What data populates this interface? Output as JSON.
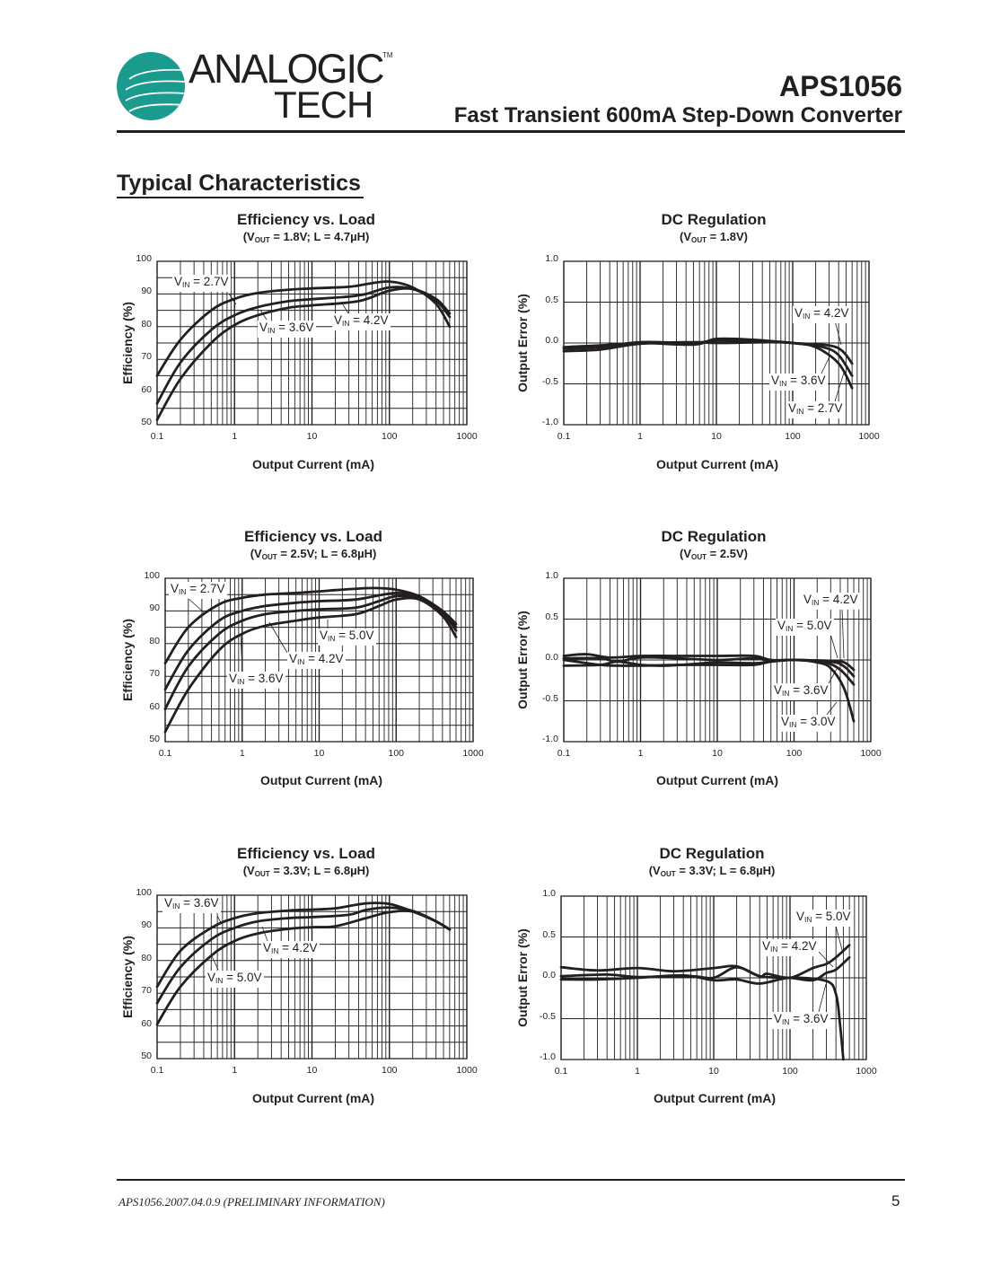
{
  "header": {
    "logo_text_line1": "ANALOGIC",
    "logo_text_line2": "TECH",
    "logo_trademark": "TM",
    "logo_color": "#1b9a8e",
    "part_number": "APS1056",
    "doc_title": "Fast Transient 600mA Step-Down Converter"
  },
  "section_title": "Typical Characteristics",
  "footer": {
    "doc_id": "APS1056.2007.04.0.9 (PRELIMINARY INFORMATION)",
    "page_number": "5"
  },
  "chart_data": [
    {
      "type": "line",
      "title": "Efficiency vs. Load",
      "subtitle": {
        "pre": "(V",
        "sub": "OUT",
        "post": " = 1.8V; L = 4.7µH)"
      },
      "xlabel": "Output Current (mA)",
      "ylabel": "Efficiency (%)",
      "xscale": "log",
      "xlim": [
        0.1,
        1000
      ],
      "ylim": [
        50,
        100
      ],
      "xticks": [
        "0.1",
        "1",
        "10",
        "100",
        "1000"
      ],
      "yticks": [
        "100",
        "90",
        "80",
        "70",
        "60",
        "50"
      ],
      "grid": true,
      "series": [
        {
          "name": "VIN = 2.7V",
          "x": [
            0.1,
            0.2,
            0.5,
            1,
            2,
            5,
            10,
            30,
            50,
            100,
            200,
            400,
            600
          ],
          "y": [
            65,
            76,
            85,
            88.5,
            90.3,
            91.3,
            91.7,
            92.2,
            93,
            93.8,
            92,
            87,
            80
          ]
        },
        {
          "name": "VIN = 3.6V",
          "x": [
            0.1,
            0.2,
            0.5,
            1,
            2,
            5,
            10,
            30,
            50,
            100,
            200,
            400,
            600
          ],
          "y": [
            56.5,
            69,
            79,
            83.5,
            86,
            87.8,
            88.4,
            89.2,
            90,
            92,
            91.5,
            88,
            83
          ]
        },
        {
          "name": "VIN = 4.2V",
          "x": [
            0.1,
            0.2,
            0.5,
            1,
            2,
            5,
            10,
            40,
            100,
            200,
            400,
            600
          ],
          "y": [
            51.5,
            64,
            75,
            80.5,
            83.5,
            85.8,
            86.5,
            87.8,
            91,
            91.5,
            88.5,
            84
          ]
        }
      ]
    },
    {
      "type": "line",
      "title": "DC Regulation",
      "subtitle": {
        "pre": "(V",
        "sub": "OUT",
        "post": " = 1.8V)"
      },
      "xlabel": "Output Current (mA)",
      "ylabel": "Output Error (%)",
      "xscale": "log",
      "xlim": [
        0.1,
        1000
      ],
      "ylim": [
        -1.0,
        1.0
      ],
      "xticks": [
        "0.1",
        "1",
        "10",
        "100",
        "1000"
      ],
      "yticks": [
        "1.0",
        "0.5",
        "0.0",
        "-0.5",
        "-1.0"
      ],
      "grid": true,
      "series": [
        {
          "name": "VIN = 4.2V",
          "x": [
            0.1,
            0.3,
            1,
            5,
            10,
            30,
            100,
            300,
            450,
            600
          ],
          "y": [
            -0.05,
            -0.03,
            0.0,
            -0.02,
            0.05,
            0.04,
            0,
            -0.03,
            -0.1,
            -0.25
          ]
        },
        {
          "name": "VIN = 3.6V",
          "x": [
            0.1,
            0.3,
            1,
            5,
            10,
            50,
            100,
            250,
            400,
            600
          ],
          "y": [
            -0.07,
            -0.05,
            0.01,
            0,
            0.03,
            0.02,
            0,
            -0.05,
            -0.15,
            -0.4
          ]
        },
        {
          "name": "VIN = 2.7V",
          "x": [
            0.1,
            0.3,
            1,
            5,
            10,
            50,
            100,
            200,
            400,
            600
          ],
          "y": [
            -0.1,
            -0.08,
            -0.01,
            0.01,
            0.0,
            0.01,
            0,
            -0.05,
            -0.25,
            -0.55
          ]
        }
      ]
    },
    {
      "type": "line",
      "title": "Efficiency vs. Load",
      "subtitle": {
        "pre": "(V",
        "sub": "OUT",
        "post": " = 2.5V; L = 6.8µH)"
      },
      "xlabel": "Output Current (mA)",
      "ylabel": "Efficiency (%)",
      "xscale": "log",
      "xlim": [
        0.1,
        1000
      ],
      "ylim": [
        50,
        100
      ],
      "xticks": [
        "0.1",
        "1",
        "10",
        "100",
        "1000"
      ],
      "yticks": [
        "100",
        "90",
        "80",
        "70",
        "60",
        "50"
      ],
      "grid": true,
      "series": [
        {
          "name": "VIN = 2.7V",
          "x": [
            0.1,
            0.2,
            0.5,
            1,
            2,
            5,
            10,
            20,
            50,
            100,
            200,
            400,
            600
          ],
          "y": [
            74,
            85,
            92,
            94,
            95,
            95.5,
            96,
            96.5,
            97,
            96.5,
            94.5,
            90,
            86
          ]
        },
        {
          "name": "VIN = 5.0V",
          "x": [
            0.1,
            0.2,
            0.5,
            1,
            2,
            5,
            10,
            30,
            60,
            100,
            200,
            400,
            600
          ],
          "y": [
            53,
            66,
            78,
            83,
            85.5,
            87,
            88,
            89,
            91.5,
            93.5,
            93.5,
            88.5,
            82
          ]
        },
        {
          "name": "VIN = 4.2V",
          "x": [
            0.1,
            0.2,
            0.5,
            1,
            2,
            5,
            10,
            30,
            60,
            100,
            200,
            400,
            600
          ],
          "y": [
            60,
            73,
            83,
            87,
            89,
            90,
            90.5,
            91,
            93,
            94.5,
            94,
            89.5,
            84
          ]
        },
        {
          "name": "VIN = 3.6V",
          "x": [
            0.1,
            0.2,
            0.5,
            1,
            2,
            5,
            10,
            30,
            100,
            200,
            400,
            600
          ],
          "y": [
            66,
            78,
            87,
            90,
            91.5,
            92.5,
            93,
            93.5,
            95.5,
            94,
            90,
            85
          ]
        }
      ]
    },
    {
      "type": "line",
      "title": "DC Regulation",
      "subtitle": {
        "pre": "(V",
        "sub": "OUT",
        "post": " = 2.5V)"
      },
      "xlabel": "Output Current (mA)",
      "ylabel": "Output Error (%)",
      "xscale": "log",
      "xlim": [
        0.1,
        1000
      ],
      "ylim": [
        -1.0,
        1.0
      ],
      "xticks": [
        "0.1",
        "1",
        "10",
        "100",
        "1000"
      ],
      "yticks": [
        "1.0",
        "0.5",
        "0.0",
        "-0.5",
        "-1.0"
      ],
      "grid": true,
      "series": [
        {
          "name": "VIN = 4.2V",
          "x": [
            0.1,
            0.2,
            0.4,
            1,
            3,
            10,
            30,
            50,
            100,
            300,
            450,
            600
          ],
          "y": [
            0.05,
            0.07,
            0.03,
            0.05,
            0.05,
            0.05,
            0.05,
            0.0,
            0,
            -0.01,
            -0.03,
            -0.12
          ]
        },
        {
          "name": "VIN = 5.0V",
          "x": [
            0.1,
            0.3,
            0.5,
            1,
            3,
            10,
            30,
            50,
            100,
            300,
            450,
            600
          ],
          "y": [
            0.02,
            0.02,
            -0.02,
            0.03,
            0.02,
            0.0,
            0.02,
            -0.01,
            0,
            -0.02,
            -0.08,
            -0.2
          ]
        },
        {
          "name": "VIN = 3.6V",
          "x": [
            0.1,
            0.3,
            0.5,
            1,
            2,
            5,
            10,
            30,
            50,
            100,
            250,
            400,
            600
          ],
          "y": [
            -0.07,
            -0.06,
            -0.02,
            -0.06,
            -0.07,
            -0.05,
            -0.03,
            -0.04,
            -0.02,
            0,
            -0.03,
            -0.12,
            -0.3
          ]
        },
        {
          "name": "VIN = 3.0V",
          "x": [
            0.1,
            0.3,
            0.5,
            1,
            3,
            10,
            30,
            50,
            100,
            200,
            300,
            450,
            600
          ],
          "y": [
            0.0,
            -0.06,
            -0.07,
            -0.07,
            -0.06,
            -0.06,
            -0.06,
            -0.02,
            0,
            -0.03,
            -0.1,
            -0.35,
            -0.75
          ]
        }
      ]
    },
    {
      "type": "line",
      "title": "Efficiency vs. Load",
      "subtitle": {
        "pre": "(V",
        "sub": "OUT",
        "post": " = 3.3V; L = 6.8µH)"
      },
      "xlabel": "Output Current (mA)",
      "ylabel": "Efficiency (%)",
      "xscale": "log",
      "xlim": [
        0.1,
        1000
      ],
      "ylim": [
        50,
        100
      ],
      "xticks": [
        "0.1",
        "1",
        "10",
        "100",
        "1000"
      ],
      "yticks": [
        "100",
        "90",
        "80",
        "70",
        "60",
        "50"
      ],
      "grid": true,
      "series": [
        {
          "name": "VIN = 3.6V",
          "x": [
            0.1,
            0.2,
            0.5,
            1,
            2,
            5,
            10,
            20,
            50,
            100,
            200,
            400,
            600
          ],
          "y": [
            72,
            83,
            90,
            93,
            94.5,
            95.3,
            95.6,
            96,
            97.5,
            97.3,
            95,
            92,
            89.5
          ]
        },
        {
          "name": "VIN = 4.2V",
          "x": [
            0.1,
            0.2,
            0.5,
            1,
            2,
            5,
            10,
            30,
            50,
            100,
            200,
            400,
            600
          ],
          "y": [
            67,
            78,
            86.5,
            90,
            92,
            93,
            93.3,
            94,
            95.5,
            96.2,
            95.2,
            92,
            89.5
          ]
        },
        {
          "name": "VIN = 5.0V",
          "x": [
            0.1,
            0.2,
            0.5,
            1,
            2,
            5,
            10,
            20,
            50,
            100,
            200,
            400,
            600
          ],
          "y": [
            60.5,
            72,
            81.5,
            86,
            88.3,
            89.7,
            90.2,
            90.5,
            93,
            94.8,
            95,
            92,
            89.5
          ]
        }
      ]
    },
    {
      "type": "line",
      "title": "DC Regulation",
      "subtitle": {
        "pre": "(V",
        "sub": "OUT",
        "post": " = 3.3V; L = 6.8µH)"
      },
      "xlabel": "Output Current (mA)",
      "ylabel": "Output Error (%)",
      "xscale": "log",
      "xlim": [
        0.1,
        1000
      ],
      "ylim": [
        -1.0,
        1.0
      ],
      "xticks": [
        "0.1",
        "1",
        "10",
        "100",
        "1000"
      ],
      "yticks": [
        "1.0",
        "0.5",
        "0.0",
        "-0.5",
        "-1.0"
      ],
      "grid": true,
      "series": [
        {
          "name": "VIN = 5.0V",
          "x": [
            0.1,
            0.3,
            1,
            3,
            10,
            20,
            40,
            50,
            100,
            200,
            300,
            400,
            600
          ],
          "y": [
            0.13,
            0.09,
            0.12,
            0.08,
            0.12,
            0.14,
            0.02,
            0.05,
            0,
            0.12,
            0.17,
            0.25,
            0.4
          ]
        },
        {
          "name": "VIN = 4.2V",
          "x": [
            0.1,
            0.4,
            1,
            5,
            10,
            20,
            40,
            100,
            200,
            300,
            400,
            600
          ],
          "y": [
            0.02,
            0.04,
            0.01,
            0.02,
            0.0,
            0.13,
            0.02,
            0,
            -0.03,
            0.06,
            0.1,
            0.25
          ]
        },
        {
          "name": "VIN = 3.6V",
          "x": [
            0.1,
            0.3,
            1,
            4,
            10,
            20,
            40,
            100,
            300,
            400,
            450,
            500
          ],
          "y": [
            -0.02,
            -0.02,
            0,
            0.03,
            -0.03,
            -0.02,
            -0.07,
            0,
            -0.04,
            -0.2,
            -0.55,
            -1.0
          ]
        }
      ]
    }
  ]
}
